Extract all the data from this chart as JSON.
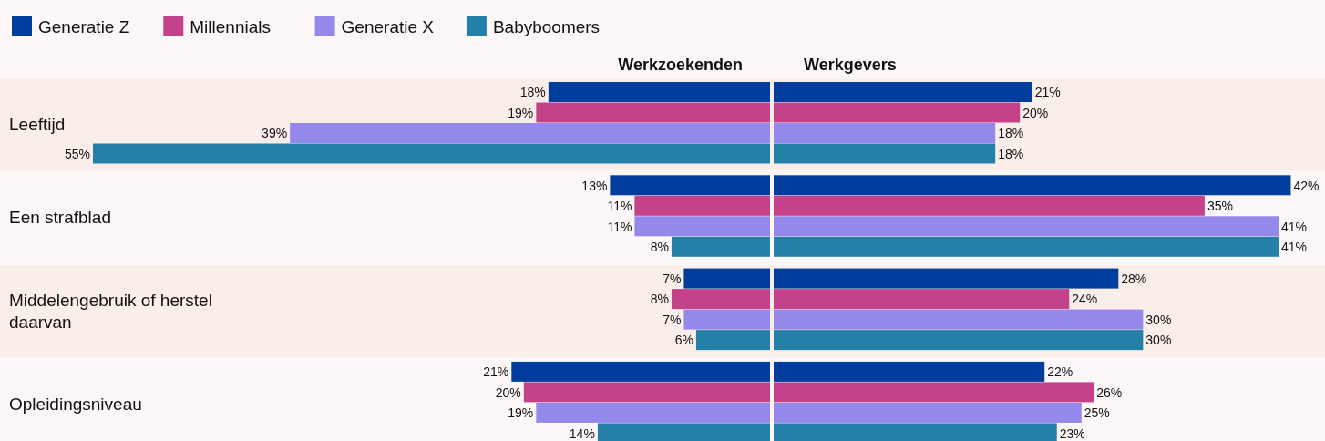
{
  "chart_data": [
    {
      "type": "bar",
      "orientation": "horizontal",
      "title": "Werkzoekenden",
      "categories": [
        "Leeftijd",
        "Een strafblad",
        "Middelengebruik of herstel daarvan",
        "Opleidingsniveau"
      ],
      "xlim": [
        55,
        0
      ],
      "tick_labels": "y",
      "legend": "top left",
      "series": [
        {
          "name": "Generatie Z",
          "color": "#003d9c",
          "values": [
            18,
            13,
            7,
            21
          ],
          "value_labels": [
            "18%",
            "13%",
            "7%",
            "21%"
          ]
        },
        {
          "name": "Millennials",
          "color": "#c4428a",
          "values": [
            19,
            11,
            8,
            20
          ],
          "value_labels": [
            "19%",
            "11%",
            "8%",
            "20%"
          ]
        },
        {
          "name": "Generatie X",
          "color": "#9488ea",
          "values": [
            39,
            11,
            7,
            19
          ],
          "value_labels": [
            "39%",
            "11%",
            "7%",
            "19%"
          ]
        },
        {
          "name": "Babyboomers",
          "color": "#2480a6",
          "values": [
            55,
            8,
            6,
            14
          ],
          "value_labels": [
            "55%",
            "8%",
            "6%",
            "14%"
          ]
        }
      ]
    },
    {
      "type": "bar",
      "orientation": "horizontal",
      "title": "Werkgevers",
      "categories": [
        null,
        null,
        null,
        null
      ],
      "xlim": [
        0,
        45
      ],
      "tick_labels": false,
      "series": [
        {
          "color": "#003d9c",
          "values": [
            21,
            42,
            28,
            22
          ],
          "value_labels": [
            "21%",
            "42%",
            "28%",
            "22%"
          ]
        },
        {
          "color": "#c4428a",
          "values": [
            20,
            35,
            24,
            26
          ],
          "value_labels": [
            "20%",
            "35%",
            "24%",
            "26%"
          ]
        },
        {
          "color": "#9488ea",
          "values": [
            18,
            41,
            30,
            25
          ],
          "value_labels": [
            "18%",
            "41%",
            "30%",
            "25%"
          ]
        },
        {
          "color": "#2480a6",
          "values": [
            18,
            41,
            30,
            23
          ],
          "value_labels": [
            "18%",
            "41%",
            "30%",
            "23%"
          ]
        }
      ]
    }
  ]
}
